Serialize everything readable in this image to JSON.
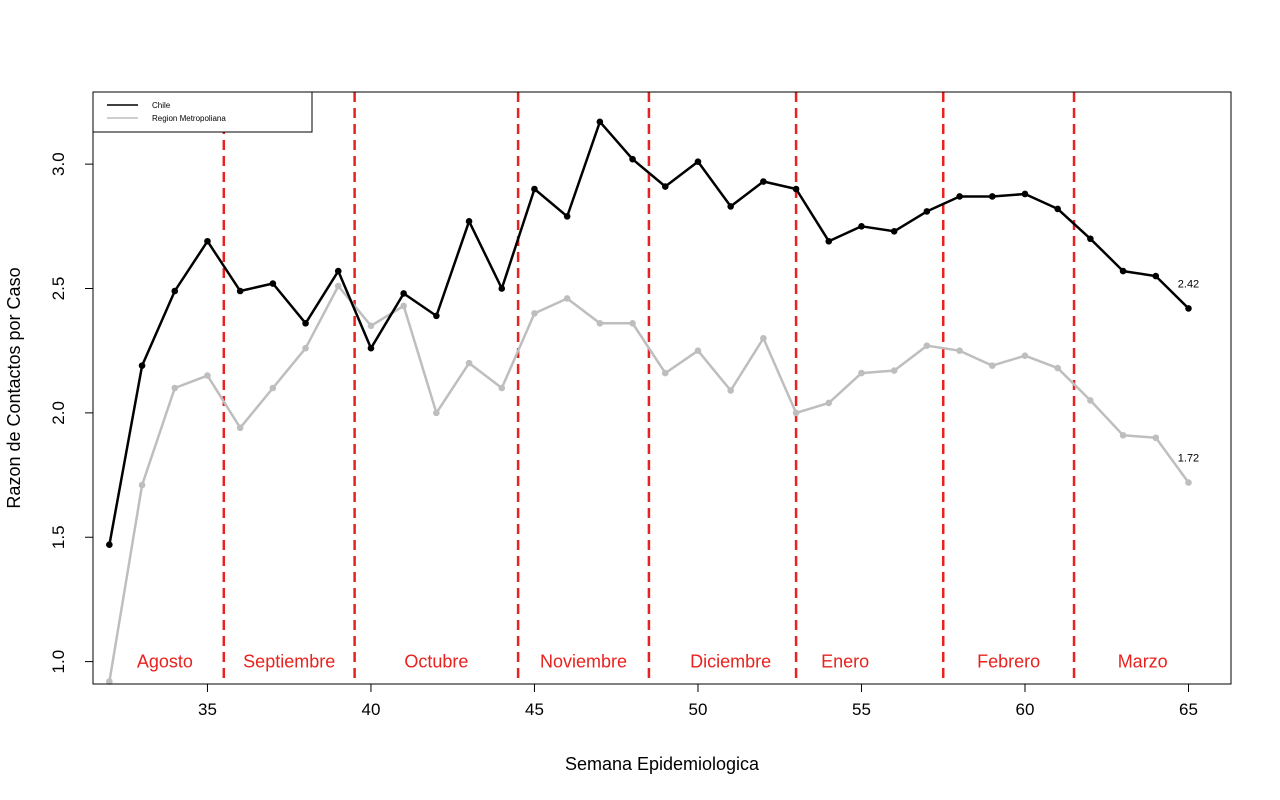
{
  "chart_data": {
    "type": "line",
    "title": "",
    "xlabel": "Semana Epidemiologica",
    "ylabel": "Razon de Contactos por Caso",
    "xlim": [
      31.5,
      66.3
    ],
    "ylim": [
      0.91,
      3.29
    ],
    "x_ticks": [
      35,
      40,
      45,
      50,
      55,
      60,
      65
    ],
    "y_ticks": [
      1.0,
      1.5,
      2.0,
      2.5,
      3.0
    ],
    "y_tick_labels": [
      "1.0",
      "1.5",
      "2.0",
      "2.5",
      "3.0"
    ],
    "grid": false,
    "legend_position": "top-left",
    "x": [
      32,
      33,
      34,
      35,
      36,
      37,
      38,
      39,
      40,
      41,
      42,
      43,
      44,
      45,
      46,
      47,
      48,
      49,
      50,
      51,
      52,
      53,
      54,
      55,
      56,
      57,
      58,
      59,
      60,
      61,
      62,
      63,
      64,
      65
    ],
    "series": [
      {
        "name": "Chile",
        "color": "#000000",
        "values": [
          1.47,
          2.19,
          2.49,
          2.69,
          2.49,
          2.52,
          2.36,
          2.57,
          2.26,
          2.48,
          2.39,
          2.77,
          2.5,
          2.9,
          2.79,
          3.17,
          3.02,
          2.91,
          3.01,
          2.83,
          2.93,
          2.9,
          2.69,
          2.75,
          2.73,
          2.81,
          2.87,
          2.87,
          2.88,
          2.82,
          2.7,
          2.57,
          2.55,
          2.42
        ]
      },
      {
        "name": "Region Metropoliana",
        "color": "#bebebe",
        "values": [
          0.92,
          1.71,
          2.1,
          2.15,
          1.94,
          2.1,
          2.26,
          2.51,
          2.35,
          2.43,
          2.0,
          2.2,
          2.1,
          2.4,
          2.46,
          2.36,
          2.36,
          2.16,
          2.25,
          2.09,
          2.3,
          2.0,
          2.04,
          2.16,
          2.17,
          2.27,
          2.25,
          2.19,
          2.23,
          2.18,
          2.05,
          1.91,
          1.9,
          1.72
        ]
      }
    ],
    "end_labels": [
      "2.42",
      "1.72"
    ],
    "month_dividers": {
      "color": "#e8221e",
      "x": [
        35.5,
        39.5,
        44.5,
        48.5,
        53,
        57.5,
        61.5
      ]
    },
    "months": [
      {
        "label": "Agosto",
        "x": 33.7
      },
      {
        "label": "Septiembre",
        "x": 37.5
      },
      {
        "label": "Octubre",
        "x": 42.0
      },
      {
        "label": "Noviembre",
        "x": 46.5
      },
      {
        "label": "Diciembre",
        "x": 51.0
      },
      {
        "label": "Enero",
        "x": 54.5
      },
      {
        "label": "Febrero",
        "x": 59.5
      },
      {
        "label": "Marzo",
        "x": 63.6
      }
    ]
  }
}
